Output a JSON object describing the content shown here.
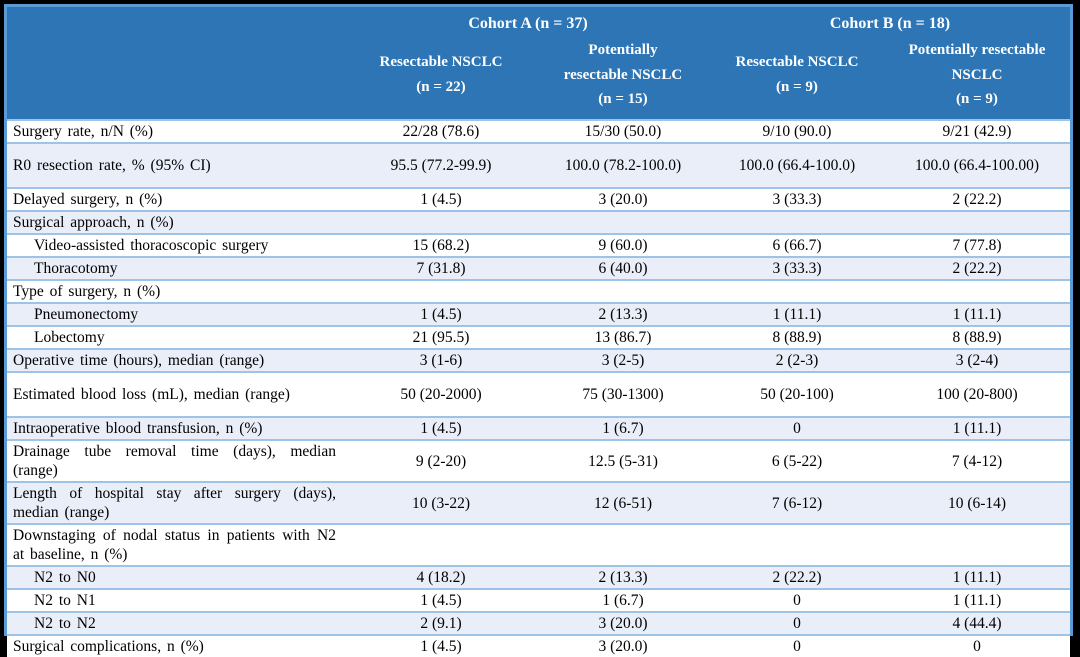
{
  "table": {
    "header": {
      "cohort_a": "Cohort A (n = 37)",
      "cohort_b": "Cohort B (n = 18)",
      "subcolumns": [
        "Resectable NSCLC\n(n = 22)",
        "Potentially\nresectable NSCLC\n(n = 15)",
        "Resectable NSCLC\n(n = 9)",
        "Potentially resectable\nNSCLC\n(n = 9)"
      ]
    },
    "rows": [
      {
        "label": "Surgery rate, n/N (%)",
        "indent": false,
        "tall": false,
        "values": [
          "22/28 (78.6)",
          "15/30 (50.0)",
          "9/10 (90.0)",
          "9/21 (42.9)"
        ]
      },
      {
        "label": "R0 resection rate, % (95% CI)",
        "indent": false,
        "tall": true,
        "values": [
          "95.5 (77.2-99.9)",
          "100.0 (78.2-100.0)",
          "100.0 (66.4-100.0)",
          "100.0 (66.4-100.00)"
        ]
      },
      {
        "label": "Delayed surgery, n (%)",
        "indent": false,
        "tall": false,
        "values": [
          "1 (4.5)",
          "3 (20.0)",
          "3 (33.3)",
          "2 (22.2)"
        ]
      },
      {
        "label": "Surgical approach, n (%)",
        "indent": false,
        "tall": false,
        "values": [
          "",
          "",
          "",
          ""
        ]
      },
      {
        "label": "Video-assisted thoracoscopic surgery",
        "indent": true,
        "tall": false,
        "values": [
          "15 (68.2)",
          "9 (60.0)",
          "6 (66.7)",
          "7 (77.8)"
        ]
      },
      {
        "label": "Thoracotomy",
        "indent": true,
        "tall": false,
        "values": [
          "7 (31.8)",
          "6 (40.0)",
          "3 (33.3)",
          "2 (22.2)"
        ]
      },
      {
        "label": "Type of surgery, n (%)",
        "indent": false,
        "tall": false,
        "values": [
          "",
          "",
          "",
          ""
        ]
      },
      {
        "label": "Pneumonectomy",
        "indent": true,
        "tall": false,
        "values": [
          "1 (4.5)",
          "2 (13.3)",
          "1 (11.1)",
          "1 (11.1)"
        ]
      },
      {
        "label": "Lobectomy",
        "indent": true,
        "tall": false,
        "values": [
          "21 (95.5)",
          "13 (86.7)",
          "8 (88.9)",
          "8 (88.9)"
        ]
      },
      {
        "label": "Operative time (hours), median (range)",
        "indent": false,
        "tall": false,
        "values": [
          "3 (1-6)",
          "3 (2-5)",
          "2 (2-3)",
          "3 (2-4)"
        ]
      },
      {
        "label": "Estimated blood loss (mL), median (range)",
        "indent": false,
        "tall": true,
        "values": [
          "50 (20-2000)",
          "75 (30-1300)",
          "50 (20-100)",
          "100 (20-800)"
        ]
      },
      {
        "label": "Intraoperative blood transfusion, n (%)",
        "indent": false,
        "tall": false,
        "values": [
          "1 (4.5)",
          "1 (6.7)",
          "0",
          "1 (11.1)"
        ]
      },
      {
        "label": "Drainage tube removal time (days), median (range)",
        "indent": false,
        "tall": false,
        "values": [
          "9 (2-20)",
          "12.5 (5-31)",
          "6 (5-22)",
          "7 (4-12)"
        ]
      },
      {
        "label": "Length of hospital stay after surgery (days), median (range)",
        "indent": false,
        "tall": false,
        "values": [
          "10 (3-22)",
          "12 (6-51)",
          "7 (6-12)",
          "10 (6-14)"
        ]
      },
      {
        "label": "Downstaging of nodal status in patients with N2 at baseline, n (%)",
        "indent": false,
        "tall": false,
        "values": [
          "",
          "",
          "",
          ""
        ]
      },
      {
        "label": "N2 to N0",
        "indent": true,
        "tall": false,
        "values": [
          "4 (18.2)",
          "2 (13.3)",
          "2 (22.2)",
          "1 (11.1)"
        ]
      },
      {
        "label": "N2 to N1",
        "indent": true,
        "tall": false,
        "values": [
          "1 (4.5)",
          "1 (6.7)",
          "0",
          "1 (11.1)"
        ]
      },
      {
        "label": "N2 to N2",
        "indent": true,
        "tall": false,
        "values": [
          "2 (9.1)",
          "3 (20.0)",
          "0",
          "4 (44.4)"
        ]
      },
      {
        "label": "Surgical complications, n (%)",
        "indent": false,
        "tall": false,
        "values": [
          "1 (4.5)",
          "3 (20.0)",
          "0",
          "0"
        ]
      }
    ]
  },
  "colors": {
    "header_bg": "#2E75B6",
    "header_text": "#FFFFFF",
    "row_bg": "#FFFFFF",
    "row_alt_bg": "#E9EEF8",
    "row_border": "#9DC3E6",
    "outer_border": "#5B9BD5",
    "frame": "#000000",
    "body_text": "#000000"
  }
}
